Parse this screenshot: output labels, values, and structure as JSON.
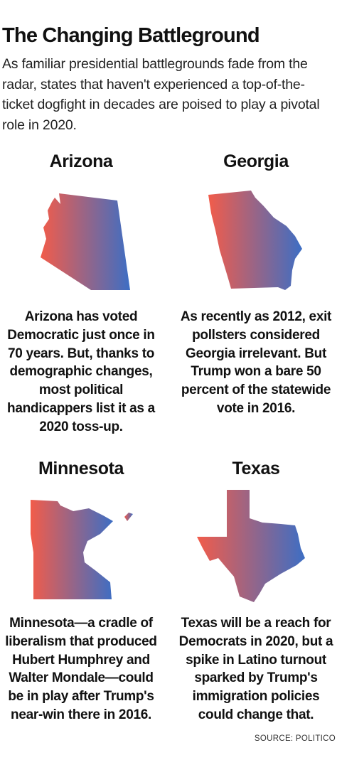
{
  "header": {
    "title": "The Changing Battleground",
    "intro": "As familiar presidential battlegrounds fade from the radar, states that haven't experienced a top-of-the-ticket dogfight in decades are poised to play a pivotal role in 2020."
  },
  "colors": {
    "red": "#f25c4a",
    "blue": "#3d6ec4"
  },
  "states": {
    "arizona": {
      "name": "Arizona",
      "blurb": "Arizona has voted Democratic just once in 70 years. But, thanks to demographic changes, most political handicappers list it as a 2020 toss-up."
    },
    "georgia": {
      "name": "Georgia",
      "blurb": "As recently as 2012, exit pollsters considered Georgia irrelevant. But Trump won a bare 50 percent of the statewide vote in 2016."
    },
    "minnesota": {
      "name": "Minnesota",
      "blurb": "Minnesota—a cradle of liberalism that produced Hubert Humphrey and Walter Mondale—could be in play after Trump's near-win there in 2016."
    },
    "texas": {
      "name": "Texas",
      "blurb": "Texas will be a reach for Democrats in 2020, but a spike in Latino turnout sparked by Trump's immigration policies could change that."
    }
  },
  "footer": {
    "source": "SOURCE: POLITICO"
  }
}
